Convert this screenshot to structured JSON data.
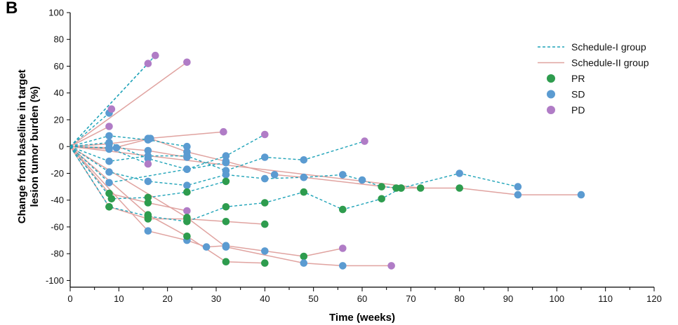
{
  "panel_label": "B",
  "chart_data": {
    "type": "line",
    "title": "",
    "xlabel": "Time (weeks)",
    "ylabel_line1": "Change from baseline in target",
    "ylabel_line2": "lesion tumor burden (%)",
    "xlim": [
      0,
      120
    ],
    "ylim": [
      -105,
      100
    ],
    "xticks": [
      0,
      10,
      20,
      30,
      40,
      50,
      60,
      70,
      80,
      90,
      100,
      110,
      120
    ],
    "yticks": [
      -100,
      -80,
      -60,
      -40,
      -20,
      0,
      20,
      40,
      60,
      80,
      100
    ],
    "grid": false,
    "legend_position": "top-right",
    "legend": [
      {
        "label": "Schedule-I group",
        "kind": "line",
        "style": "dashed",
        "color": "#1fa3b8"
      },
      {
        "label": "Schedule-II group",
        "kind": "line",
        "style": "solid",
        "color": "#e0a3a0"
      },
      {
        "label": "PR",
        "kind": "marker",
        "color": "#2e9c4e"
      },
      {
        "label": "SD",
        "kind": "marker",
        "color": "#5b9bd1"
      },
      {
        "label": "PD",
        "kind": "marker",
        "color": "#b07cc6"
      }
    ],
    "series": [
      {
        "group": "I",
        "points": [
          [
            0,
            0,
            "B"
          ],
          [
            8,
            25,
            "SD"
          ],
          [
            8.5,
            28,
            "PD"
          ]
        ]
      },
      {
        "group": "I",
        "points": [
          [
            0,
            0,
            "B"
          ],
          [
            16,
            62,
            "PD"
          ]
        ]
      },
      {
        "group": "I",
        "points": [
          [
            0,
            0,
            "B"
          ],
          [
            17.5,
            68,
            "PD"
          ]
        ]
      },
      {
        "group": "I",
        "points": [
          [
            0,
            0,
            "B"
          ],
          [
            8,
            8,
            "SD"
          ],
          [
            16,
            5,
            "SD"
          ],
          [
            24,
            0,
            "SD"
          ]
        ]
      },
      {
        "group": "I",
        "points": [
          [
            0,
            0,
            "B"
          ],
          [
            8,
            3,
            "SD"
          ],
          [
            16,
            -9,
            "SD"
          ],
          [
            24,
            -17,
            "SD"
          ],
          [
            32,
            -12,
            "SD"
          ]
        ]
      },
      {
        "group": "I",
        "points": [
          [
            0,
            0,
            "B"
          ],
          [
            8,
            -1,
            "SD"
          ],
          [
            16,
            -13,
            "PD"
          ]
        ]
      },
      {
        "group": "I",
        "points": [
          [
            0,
            0,
            "B"
          ],
          [
            8,
            -19,
            "SD"
          ],
          [
            16,
            -26,
            "SD"
          ],
          [
            24,
            -29,
            "SD"
          ],
          [
            32,
            -21,
            "SD"
          ],
          [
            40,
            -24,
            "SD"
          ],
          [
            48,
            -23,
            "SD"
          ],
          [
            56,
            -21,
            "SD"
          ],
          [
            60,
            -25,
            "SD"
          ],
          [
            64,
            -30,
            "PR"
          ],
          [
            68,
            -31,
            "PR"
          ],
          [
            80,
            -20,
            "SD"
          ],
          [
            92,
            -30,
            "SD"
          ]
        ]
      },
      {
        "group": "I",
        "points": [
          [
            0,
            0,
            "B"
          ],
          [
            8,
            -11,
            "SD"
          ],
          [
            16,
            -7,
            "SD"
          ],
          [
            24,
            -7,
            "SD"
          ],
          [
            32,
            -18,
            "SD"
          ],
          [
            40,
            -8,
            "SD"
          ],
          [
            48,
            -10,
            "SD"
          ],
          [
            60.5,
            4,
            "PD"
          ]
        ]
      },
      {
        "group": "I",
        "points": [
          [
            0,
            0,
            "B"
          ],
          [
            8.5,
            -39,
            "PR"
          ],
          [
            16,
            -38,
            "PR"
          ],
          [
            24,
            -34,
            "PR"
          ],
          [
            32,
            -26,
            "PR"
          ]
        ]
      },
      {
        "group": "I",
        "points": [
          [
            0,
            0,
            "B"
          ],
          [
            8,
            -45,
            "PR"
          ],
          [
            16,
            -52,
            "PR"
          ],
          [
            24,
            -56,
            "PR"
          ],
          [
            32,
            -45,
            "PR"
          ],
          [
            40,
            -42,
            "PR"
          ],
          [
            48,
            -34,
            "PR"
          ],
          [
            56,
            -47,
            "PR"
          ],
          [
            64,
            -39,
            "PR"
          ],
          [
            68,
            -31,
            "PR"
          ]
        ]
      },
      {
        "group": "I",
        "points": [
          [
            0,
            0,
            "B"
          ],
          [
            8,
            -27,
            "SD"
          ],
          [
            24,
            -17,
            "SD"
          ],
          [
            32,
            -7,
            "SD"
          ],
          [
            40,
            9,
            "PD"
          ]
        ]
      },
      {
        "group": "II",
        "points": [
          [
            0,
            0,
            "B"
          ],
          [
            24,
            63,
            "PD"
          ]
        ]
      },
      {
        "group": "II",
        "points": [
          [
            0,
            0,
            "B"
          ],
          [
            8,
            15,
            "PD"
          ]
        ]
      },
      {
        "group": "II",
        "points": [
          [
            0,
            0,
            "B"
          ],
          [
            8,
            2,
            "SD"
          ],
          [
            16,
            6,
            "SD"
          ],
          [
            31.5,
            11,
            "PD"
          ]
        ]
      },
      {
        "group": "II",
        "points": [
          [
            0,
            0,
            "B"
          ],
          [
            8,
            -2,
            "SD"
          ],
          [
            16.5,
            6,
            "SD"
          ],
          [
            24,
            -4,
            "SD"
          ],
          [
            32,
            -11,
            "SD"
          ],
          [
            42,
            -21,
            "SD"
          ],
          [
            48,
            -23,
            "SD"
          ],
          [
            67,
            -31,
            "PR"
          ],
          [
            80,
            -31,
            "PR"
          ],
          [
            92,
            -36,
            "SD"
          ],
          [
            105,
            -36,
            "SD"
          ]
        ]
      },
      {
        "group": "II",
        "points": [
          [
            0,
            0,
            "B"
          ],
          [
            9.5,
            -1,
            "SD"
          ],
          [
            16,
            -3,
            "SD"
          ],
          [
            24,
            -8,
            "SD"
          ]
        ]
      },
      {
        "group": "II",
        "points": [
          [
            0,
            0,
            "B"
          ],
          [
            8,
            -35,
            "PR"
          ],
          [
            16,
            -42,
            "PR"
          ],
          [
            24,
            -48,
            "PD"
          ]
        ]
      },
      {
        "group": "II",
        "points": [
          [
            0,
            0,
            "B"
          ],
          [
            8,
            -45,
            "PR"
          ],
          [
            16,
            -54,
            "PR"
          ],
          [
            24,
            -54,
            "PR"
          ],
          [
            32,
            -56,
            "PR"
          ],
          [
            40,
            -58,
            "PR"
          ]
        ]
      },
      {
        "group": "II",
        "points": [
          [
            0,
            0,
            "B"
          ],
          [
            16,
            -63,
            "SD"
          ],
          [
            24,
            -70,
            "SD"
          ],
          [
            28,
            -75,
            "SD"
          ],
          [
            32,
            -74,
            "SD"
          ],
          [
            40,
            -78,
            "SD"
          ],
          [
            48,
            -82,
            "PR"
          ],
          [
            56,
            -76,
            "PD"
          ]
        ]
      },
      {
        "group": "II",
        "points": [
          [
            0,
            0,
            "B"
          ],
          [
            16,
            -51,
            "PR"
          ],
          [
            24,
            -67,
            "PR"
          ],
          [
            32,
            -86,
            "PR"
          ],
          [
            40,
            -87,
            "PR"
          ]
        ]
      },
      {
        "group": "II",
        "points": [
          [
            0,
            0,
            "B"
          ],
          [
            24,
            -53,
            "PR"
          ],
          [
            32,
            -75,
            "SD"
          ],
          [
            48,
            -87,
            "SD"
          ],
          [
            56,
            -89,
            "SD"
          ],
          [
            66,
            -89,
            "PD"
          ]
        ]
      },
      {
        "group": "II",
        "points": [
          [
            0,
            0,
            "B"
          ],
          [
            72,
            -31,
            "PR"
          ]
        ]
      }
    ]
  }
}
